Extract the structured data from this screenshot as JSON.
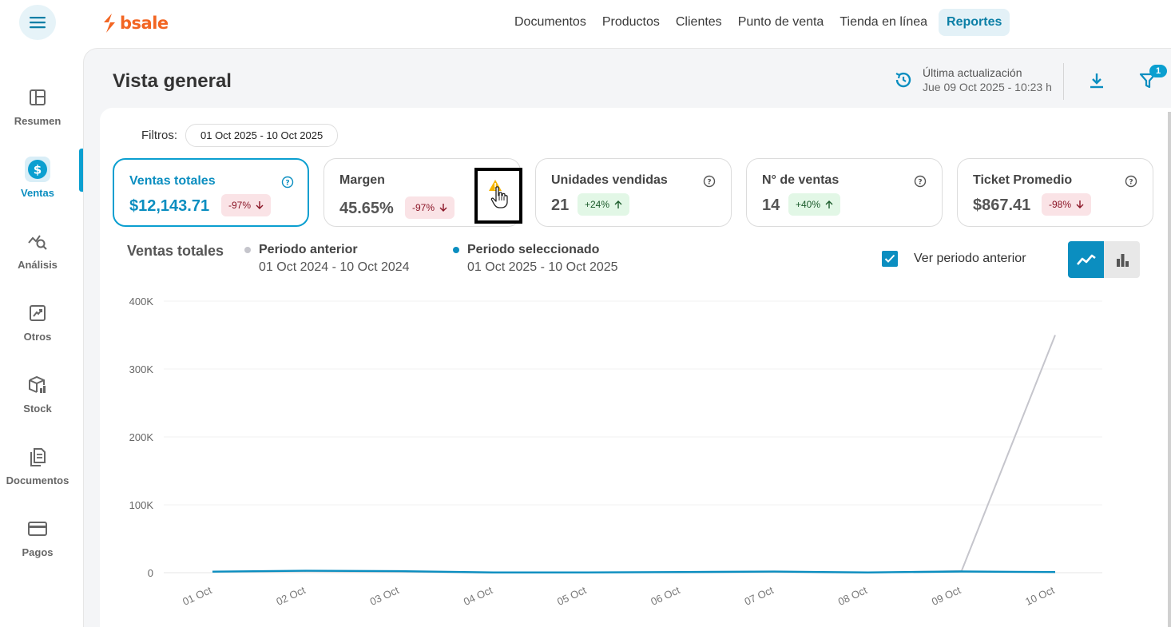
{
  "app": {
    "logo_text": "bsale",
    "brand_color": "#f26522",
    "accent": "#0b9fd0"
  },
  "topnav": {
    "items": [
      {
        "label": "Documentos"
      },
      {
        "label": "Productos"
      },
      {
        "label": "Clientes"
      },
      {
        "label": "Punto de venta"
      },
      {
        "label": "Tienda en línea"
      },
      {
        "label": "Reportes",
        "active": true
      }
    ]
  },
  "sidebar": {
    "items": [
      {
        "label": "Resumen",
        "icon": "layout-icon"
      },
      {
        "label": "Ventas",
        "icon": "dollar-icon",
        "active": true
      },
      {
        "label": "Análisis",
        "icon": "analysis-icon"
      },
      {
        "label": "Otros",
        "icon": "trend-chart-icon"
      },
      {
        "label": "Stock",
        "icon": "box-icon"
      },
      {
        "label": "Documentos",
        "icon": "documents-icon"
      },
      {
        "label": "Pagos",
        "icon": "card-icon"
      }
    ]
  },
  "header": {
    "title": "Vista general",
    "update_label": "Última actualización",
    "update_time": "Jue 09 Oct 2025 - 10:23 h",
    "filter_badge": "1"
  },
  "filters": {
    "label": "Filtros:",
    "date_range": "01 Oct 2025 - 10 Oct 2025"
  },
  "kpis": [
    {
      "title": "Ventas totales",
      "value": "$12,143.71",
      "change": "-97%",
      "direction": "down",
      "selected": true,
      "icon": "help-icon"
    },
    {
      "title": "Margen",
      "value": "45.65%",
      "change": "-97%",
      "direction": "down",
      "icon": "warning-icon"
    },
    {
      "title": "Unidades vendidas",
      "value": "21",
      "change": "+24%",
      "direction": "up",
      "icon": "help-icon"
    },
    {
      "title": "N° de ventas",
      "value": "14",
      "change": "+40%",
      "direction": "up",
      "icon": "help-icon"
    },
    {
      "title": "Ticket Promedio",
      "value": "$867.41",
      "change": "-98%",
      "direction": "down",
      "icon": "help-icon"
    }
  ],
  "chart_section": {
    "title": "Ventas totales",
    "legend": [
      {
        "name": "Periodo anterior",
        "range": "01 Oct 2024 - 10 Oct 2024",
        "color": "#c5c5cc"
      },
      {
        "name": "Periodo seleccionado",
        "range": "01 Oct 2025 - 10 Oct 2025",
        "color": "#0b8ec0"
      }
    ],
    "checkbox_label": "Ver periodo anterior",
    "checkbox_checked": true
  },
  "chart_data": {
    "type": "line",
    "title": "",
    "xlabel": "",
    "ylabel": "",
    "categories": [
      "01 Oct",
      "02 Oct",
      "03 Oct",
      "04 Oct",
      "05 Oct",
      "06 Oct",
      "07 Oct",
      "08 Oct",
      "09 Oct",
      "10 Oct"
    ],
    "yticks": [
      "0",
      "100K",
      "200K",
      "300K",
      "400K"
    ],
    "ylim": [
      0,
      400000
    ],
    "grid": true,
    "series": [
      {
        "name": "Periodo anterior",
        "color": "#c5c5cc",
        "values": [
          1500,
          2000,
          1500,
          0,
          500,
          500,
          1000,
          0,
          2500,
          350000
        ]
      },
      {
        "name": "Periodo seleccionado",
        "color": "#0b8ec0",
        "values": [
          1500,
          2800,
          2200,
          300,
          300,
          900,
          1700,
          400,
          1800,
          900
        ]
      }
    ]
  }
}
